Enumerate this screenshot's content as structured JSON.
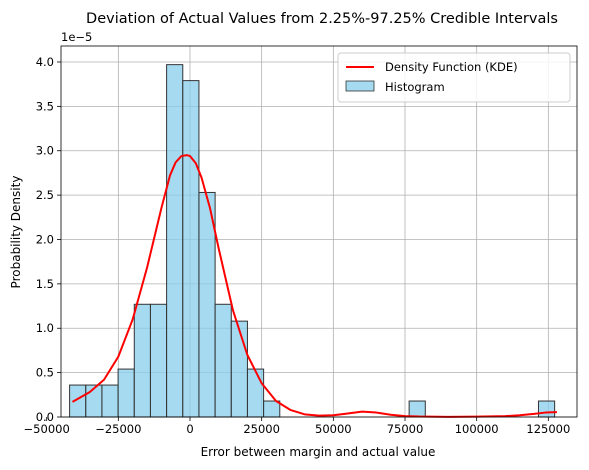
{
  "chart_data": {
    "type": "bar",
    "title": "Deviation of Actual Values from 2.25%-97.25% Credible Intervals",
    "xlabel": "Error between margin and actual value",
    "ylabel": "Probability Density",
    "y_offset_label": "1e−5",
    "xlim": [
      -45000,
      135000
    ],
    "ylim": [
      0,
      4.18
    ],
    "y_scale_exponent": -5,
    "grid": true,
    "legend_position": "upper right",
    "x_ticks": [
      -50000,
      -25000,
      0,
      25000,
      50000,
      75000,
      100000,
      125000
    ],
    "x_tick_labels": [
      "−50000",
      "−25000",
      "0",
      "25000",
      "50000",
      "75000",
      "100000",
      "125000"
    ],
    "y_ticks": [
      0,
      0.5,
      1.0,
      1.5,
      2.0,
      2.5,
      3.0,
      3.5,
      4.0
    ],
    "y_tick_labels": [
      "0.0",
      "0.5",
      "1.0",
      "1.5",
      "2.0",
      "2.5",
      "3.0",
      "3.5",
      "4.0"
    ],
    "histogram": {
      "name": "Histogram",
      "color": "#87ceeb",
      "edge_color": "#333333",
      "bin_start": -42000,
      "bin_width": 5640,
      "values": [
        0.36,
        0.36,
        0.36,
        0.54,
        1.27,
        1.27,
        3.97,
        3.79,
        2.53,
        1.27,
        1.08,
        0.54,
        0.18,
        0,
        0,
        0,
        0,
        0,
        0,
        0,
        0,
        0.18,
        0,
        0,
        0,
        0,
        0,
        0,
        0,
        0.18
      ]
    },
    "kde": {
      "name": "Density Function (KDE)",
      "color": "#ff0000",
      "x": [
        -41000,
        -35000,
        -30000,
        -25000,
        -20000,
        -15000,
        -10000,
        -7000,
        -5000,
        -3000,
        -1000,
        0,
        2000,
        4000,
        7000,
        10000,
        15000,
        20000,
        25000,
        30000,
        35000,
        40000,
        45000,
        50000,
        55000,
        60000,
        65000,
        70000,
        75000,
        80000,
        90000,
        100000,
        110000,
        115000,
        120000,
        124000,
        128000
      ],
      "y": [
        0.17,
        0.28,
        0.42,
        0.68,
        1.1,
        1.68,
        2.35,
        2.72,
        2.87,
        2.94,
        2.95,
        2.94,
        2.86,
        2.7,
        2.35,
        1.9,
        1.2,
        0.7,
        0.38,
        0.18,
        0.08,
        0.03,
        0.015,
        0.02,
        0.04,
        0.06,
        0.05,
        0.025,
        0.01,
        0.005,
        0.002,
        0.004,
        0.01,
        0.02,
        0.035,
        0.05,
        0.055
      ]
    }
  }
}
